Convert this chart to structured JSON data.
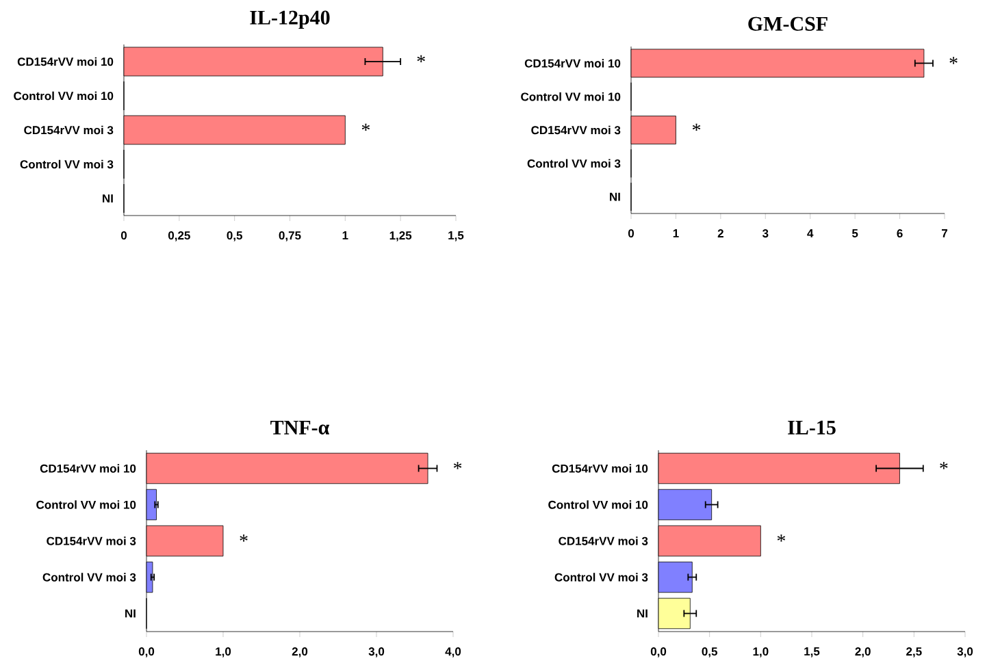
{
  "chart_data": [
    {
      "type": "bar",
      "orientation": "horizontal",
      "title": "IL-12p40",
      "categories": [
        "CD154rVV moi 10",
        "Control VV moi 10",
        "CD154rVV moi 3",
        "Control VV moi 3",
        "NI"
      ],
      "values": [
        1.17,
        0,
        1.0,
        0,
        0
      ],
      "errors": [
        0.08,
        null,
        null,
        null,
        null
      ],
      "colors": [
        "#ff8080",
        "#ff8080",
        "#ff8080",
        "#8080ff",
        "#ffff99"
      ],
      "xlim": [
        0,
        1.5
      ],
      "xticks": [
        0,
        {
          "value": 0.25,
          "label": "0,25"
        },
        {
          "value": 0.5,
          "label": "0,5"
        },
        {
          "value": 0.75,
          "label": "0,75"
        },
        1,
        {
          "value": 1.25,
          "label": "1,25"
        },
        {
          "value": 1.5,
          "label": "1,5"
        }
      ],
      "annotations": [
        {
          "text": "*",
          "x": 1.17,
          "y": "CD154rVV moi 10"
        },
        {
          "text": "*",
          "x": 1.0,
          "y": "CD154rVV moi 3"
        }
      ]
    },
    {
      "type": "bar",
      "orientation": "horizontal",
      "title": "GM-CSF",
      "categories": [
        "CD154rVV moi 10",
        "Control VV moi 10",
        "CD154rVV moi 3",
        "Control VV moi 3",
        "NI"
      ],
      "values": [
        6.54,
        0,
        1.0,
        0,
        0
      ],
      "errors": [
        0.2,
        null,
        null,
        null,
        null
      ],
      "colors": [
        "#ff8080",
        "#8080ff",
        "#ff8080",
        "#8080ff",
        "#ffff99"
      ],
      "xlim": [
        0,
        7
      ],
      "xticks": [
        0,
        1,
        2,
        3,
        4,
        5,
        6,
        7
      ],
      "annotations": [
        {
          "text": "*",
          "x": 6.54,
          "y": "CD154rVV moi 10"
        },
        {
          "text": "*",
          "x": 1.0,
          "y": "CD154rVV moi 3"
        }
      ]
    },
    {
      "type": "bar",
      "orientation": "horizontal",
      "title": "TNF-α",
      "categories": [
        "CD154rVV moi 10",
        "Control VV moi 10",
        "CD154rVV moi 3",
        "Control VV moi 3",
        "NI"
      ],
      "values": [
        3.67,
        0.13,
        1.0,
        0.08,
        0
      ],
      "errors": [
        0.12,
        0.02,
        null,
        0.02,
        null
      ],
      "colors": [
        "#ff8080",
        "#8080ff",
        "#ff8080",
        "#8080ff",
        "#ffff99"
      ],
      "xlim": [
        0,
        4
      ],
      "xticks": [
        {
          "value": 0,
          "label": "0,0"
        },
        {
          "value": 1,
          "label": "1,0"
        },
        {
          "value": 2,
          "label": "2,0"
        },
        {
          "value": 3,
          "label": "3,0"
        },
        {
          "value": 4,
          "label": "4,0"
        }
      ],
      "annotations": [
        {
          "text": "*",
          "x": 3.67,
          "y": "CD154rVV moi 10"
        },
        {
          "text": "*",
          "x": 1.0,
          "y": "CD154rVV moi 3"
        }
      ]
    },
    {
      "type": "bar",
      "orientation": "horizontal",
      "title": "IL-15",
      "categories": [
        "CD154rVV moi 10",
        "Control VV moi 10",
        "CD154rVV moi 3",
        "Control VV moi 3",
        "NI"
      ],
      "values": [
        2.36,
        0.52,
        1.0,
        0.33,
        0.31
      ],
      "errors": [
        0.23,
        0.06,
        null,
        0.04,
        0.06
      ],
      "colors": [
        "#ff8080",
        "#8080ff",
        "#ff8080",
        "#8080ff",
        "#ffff99"
      ],
      "xlim": [
        0,
        3
      ],
      "xticks": [
        {
          "value": 0,
          "label": "0,0"
        },
        {
          "value": 0.5,
          "label": "0,5"
        },
        {
          "value": 1,
          "label": "1,0"
        },
        {
          "value": 1.5,
          "label": "1,5"
        },
        {
          "value": 2,
          "label": "2,0"
        },
        {
          "value": 2.5,
          "label": "2,5"
        },
        {
          "value": 3,
          "label": "3,0"
        }
      ],
      "annotations": [
        {
          "text": "*",
          "x": 2.36,
          "y": "CD154rVV moi 10"
        },
        {
          "text": "*",
          "x": 1.0,
          "y": "CD154rVV moi 3"
        }
      ]
    }
  ]
}
